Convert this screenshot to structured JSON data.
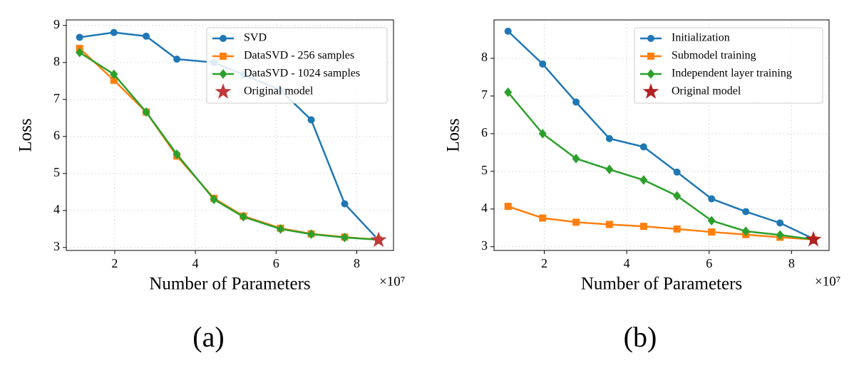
{
  "chart_data": [
    {
      "type": "line",
      "caption": "(a)",
      "xlabel": "Number of Parameters",
      "ylabel": "Loss",
      "x_scale_label": "×10⁷",
      "x": [
        1.13,
        1.98,
        2.78,
        3.54,
        4.46,
        5.19,
        6.11,
        6.87,
        7.7,
        8.54
      ],
      "series": [
        {
          "name": "SVD",
          "color": "#1f77b4",
          "marker": "circle",
          "values": [
            8.68,
            8.81,
            8.71,
            8.09,
            8.0,
            7.67,
            7.25,
            6.45,
            4.18,
            3.2
          ]
        },
        {
          "name": "DataSVD - 256 samples",
          "color": "#ff7f0e",
          "marker": "square",
          "values": [
            8.38,
            7.52,
            6.66,
            5.47,
            4.33,
            3.85,
            3.52,
            3.37,
            3.28,
            3.21
          ]
        },
        {
          "name": "DataSVD - 1024 samples",
          "color": "#2ca02c",
          "marker": "diamond",
          "values": [
            8.27,
            7.68,
            6.66,
            5.52,
            4.3,
            3.83,
            3.5,
            3.36,
            3.27,
            3.21
          ]
        },
        {
          "name": "Original model",
          "color": "#c0393b",
          "marker": "star",
          "x": [
            8.54
          ],
          "values": [
            3.2
          ]
        }
      ],
      "xlim": [
        0.8,
        8.91
      ],
      "ylim": [
        2.92,
        9.15
      ],
      "xticks": [
        2,
        4,
        6,
        8
      ],
      "yticks": [
        3,
        4,
        5,
        6,
        7,
        8,
        9
      ],
      "grid": true,
      "legend": "upper right"
    },
    {
      "type": "line",
      "caption": "(b)",
      "xlabel": "Number of Parameters",
      "ylabel": "Loss",
      "x_scale_label": "×10⁷",
      "x": [
        1.12,
        1.96,
        2.77,
        3.58,
        4.41,
        5.22,
        6.06,
        6.89,
        7.72,
        8.53
      ],
      "series": [
        {
          "name": "Initialization",
          "color": "#1f77b4",
          "marker": "circle",
          "values": [
            8.72,
            7.85,
            6.84,
            5.87,
            5.65,
            4.98,
            4.27,
            3.93,
            3.63,
            3.21
          ]
        },
        {
          "name": "Submodel training",
          "color": "#ff7f0e",
          "marker": "square",
          "values": [
            4.07,
            3.76,
            3.65,
            3.59,
            3.54,
            3.47,
            3.39,
            3.32,
            3.25,
            3.19
          ]
        },
        {
          "name": "Independent layer training",
          "color": "#2ca02c",
          "marker": "diamond",
          "values": [
            7.1,
            6.0,
            5.34,
            5.05,
            4.77,
            4.35,
            3.69,
            3.41,
            3.31,
            3.19
          ]
        },
        {
          "name": "Original model",
          "color": "#b22222",
          "marker": "star",
          "x": [
            8.53
          ],
          "values": [
            3.19
          ]
        }
      ],
      "xlim": [
        0.78,
        8.91
      ],
      "ylim": [
        2.9,
        9.02
      ],
      "xticks": [
        2,
        4,
        6,
        8
      ],
      "yticks": [
        3,
        4,
        5,
        6,
        7,
        8
      ],
      "grid": true,
      "legend": "upper left"
    }
  ]
}
